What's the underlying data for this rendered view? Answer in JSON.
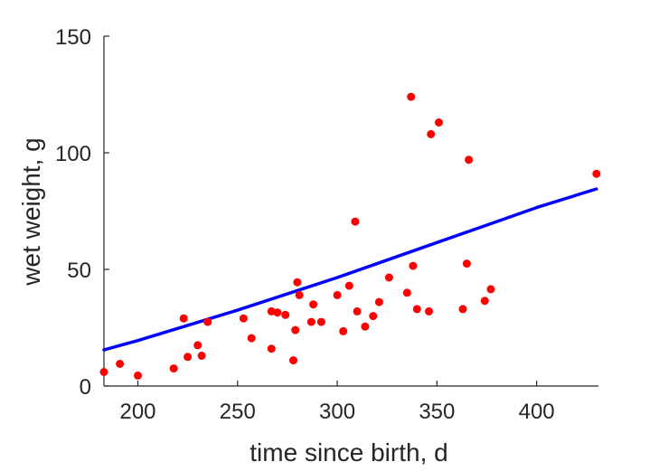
{
  "chart_data": {
    "type": "scatter",
    "xlabel": "time since birth, d",
    "ylabel": "wet weight, g",
    "xlim": [
      183,
      431
    ],
    "ylim": [
      0,
      150
    ],
    "xticks": [
      200,
      250,
      300,
      350,
      400
    ],
    "yticks": [
      0,
      50,
      100,
      150
    ],
    "box": false,
    "grid": false,
    "series": [
      {
        "type": "scatter",
        "color": "#ff0000",
        "points": [
          [
            183,
            6
          ],
          [
            191,
            9.5
          ],
          [
            200,
            4.5
          ],
          [
            218,
            7.5
          ],
          [
            223,
            29
          ],
          [
            225,
            12.5
          ],
          [
            230,
            17.5
          ],
          [
            232,
            13
          ],
          [
            235,
            27.5
          ],
          [
            253,
            29
          ],
          [
            257,
            20.5
          ],
          [
            267,
            16
          ],
          [
            267,
            32
          ],
          [
            270,
            31.5
          ],
          [
            274,
            30.5
          ],
          [
            278,
            11
          ],
          [
            279,
            24
          ],
          [
            280,
            44.5
          ],
          [
            281,
            39
          ],
          [
            287,
            27.5
          ],
          [
            288,
            35
          ],
          [
            292,
            27.5
          ],
          [
            300,
            39
          ],
          [
            303,
            23.5
          ],
          [
            306,
            43
          ],
          [
            309,
            70.5
          ],
          [
            310,
            32
          ],
          [
            314,
            25.5
          ],
          [
            318,
            30
          ],
          [
            321,
            36
          ],
          [
            326,
            46.5
          ],
          [
            335,
            40
          ],
          [
            337,
            124
          ],
          [
            338,
            51.5
          ],
          [
            340,
            33
          ],
          [
            346,
            32
          ],
          [
            347,
            108
          ],
          [
            351,
            113
          ],
          [
            363,
            33
          ],
          [
            365,
            52.5
          ],
          [
            366,
            97
          ],
          [
            374,
            36.5
          ],
          [
            377,
            41.5
          ],
          [
            430,
            91
          ]
        ]
      },
      {
        "type": "line",
        "color": "#0000ff",
        "points": [
          [
            183,
            15.5
          ],
          [
            200,
            19.5
          ],
          [
            225,
            26
          ],
          [
            250,
            32.5
          ],
          [
            275,
            39.5
          ],
          [
            300,
            46.5
          ],
          [
            325,
            54
          ],
          [
            350,
            61.5
          ],
          [
            375,
            69
          ],
          [
            400,
            76.5
          ],
          [
            430,
            84.5
          ]
        ]
      }
    ]
  }
}
